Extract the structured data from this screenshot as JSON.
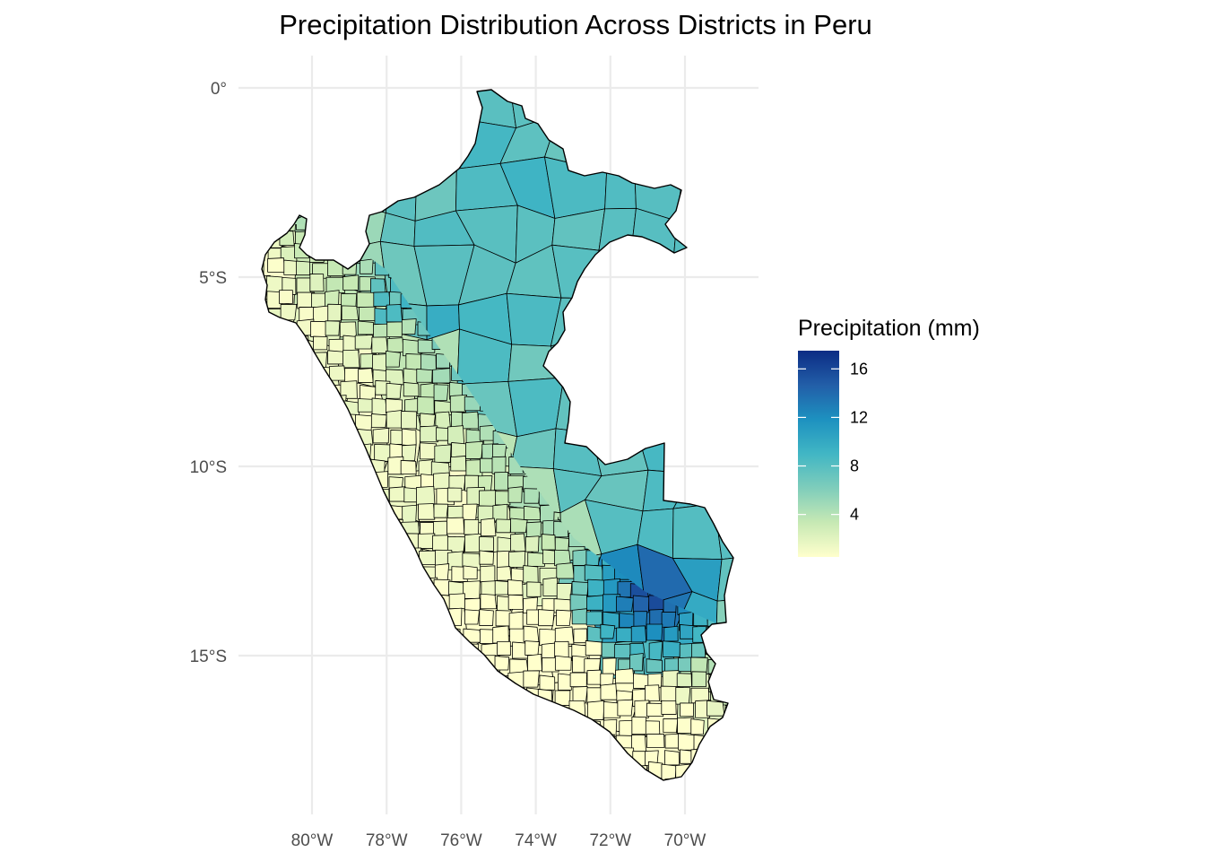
{
  "map": {
    "title": "Precipitation Distribution Across Districts in Peru",
    "x_ticks": [
      {
        "lon": -80,
        "label": "80°W"
      },
      {
        "lon": -78,
        "label": "78°W"
      },
      {
        "lon": -76,
        "label": "76°W"
      },
      {
        "lon": -74,
        "label": "74°W"
      },
      {
        "lon": -72,
        "label": "72°W"
      },
      {
        "lon": -70,
        "label": "70°W"
      }
    ],
    "y_ticks": [
      {
        "lat": 0,
        "label": "0°"
      },
      {
        "lat": -5,
        "label": "5°S"
      },
      {
        "lat": -10,
        "label": "10°S"
      },
      {
        "lat": -15,
        "label": "15°S"
      }
    ],
    "legend": {
      "title": "Precipitation (mm)",
      "min": 0.5,
      "max": 17.5,
      "breaks": [
        {
          "value": 16,
          "label": "16"
        },
        {
          "value": 12,
          "label": "12"
        },
        {
          "value": 8,
          "label": "8"
        },
        {
          "value": 4,
          "label": "4"
        }
      ],
      "colors": [
        "#ffffcc",
        "#c7e9b4",
        "#7fcdbb",
        "#41b6c4",
        "#1d91c0",
        "#225ea8",
        "#0c2c84"
      ]
    },
    "palette_name": "YlGnBu"
  }
}
